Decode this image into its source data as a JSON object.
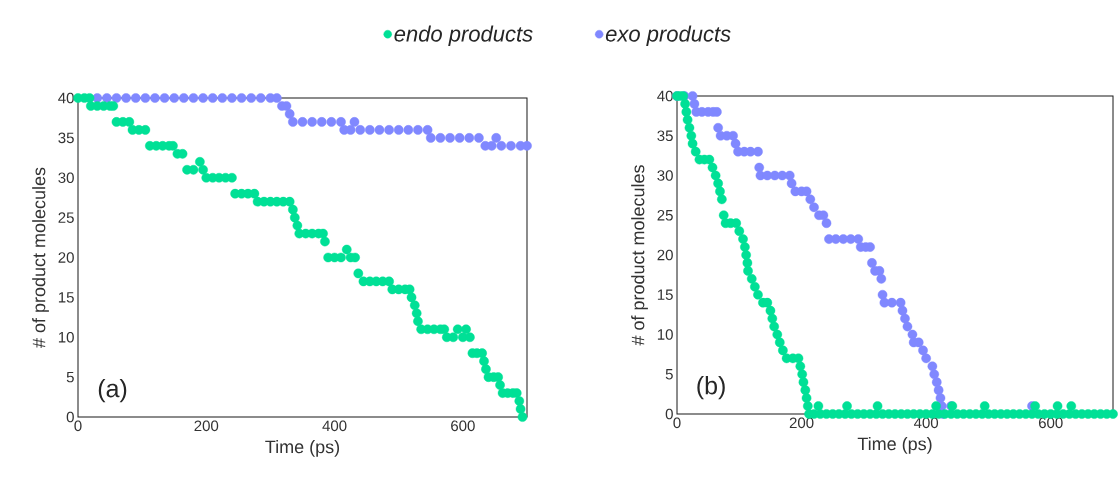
{
  "chart_data": [
    {
      "type": "scatter",
      "xlabel": "Time (ps)",
      "ylabel": "# of product molecules",
      "annotations": [
        "(a)"
      ],
      "xlim": [
        0,
        700
      ],
      "ylim": [
        0,
        40
      ],
      "xticks": [
        0,
        200,
        400,
        600
      ],
      "yticks": [
        0,
        5,
        10,
        15,
        20,
        25,
        30,
        35,
        40
      ],
      "grid": false,
      "legend": "top",
      "marker": "circle",
      "series": [
        {
          "name": "endo products",
          "color": "#00e096",
          "x": [
            0,
            10,
            18,
            20,
            30,
            40,
            50,
            55,
            60,
            70,
            80,
            85,
            95,
            105,
            112,
            122,
            132,
            142,
            148,
            155,
            163,
            170,
            180,
            190,
            195,
            200,
            210,
            220,
            230,
            240,
            245,
            255,
            265,
            275,
            280,
            290,
            300,
            310,
            320,
            330,
            335,
            338,
            342,
            345,
            355,
            365,
            375,
            382,
            385,
            390,
            400,
            410,
            419,
            425,
            432,
            437,
            445,
            455,
            465,
            475,
            485,
            490,
            500,
            510,
            517,
            520,
            525,
            528,
            530,
            535,
            545,
            555,
            565,
            571,
            575,
            585,
            592,
            600,
            605,
            611,
            615,
            622,
            630,
            633,
            636,
            640,
            648,
            655,
            658,
            662,
            670,
            678,
            684,
            688,
            690,
            693
          ],
          "values": [
            40,
            40,
            40,
            39,
            39,
            39,
            39,
            39,
            37,
            37,
            37,
            36,
            36,
            36,
            34,
            34,
            34,
            34,
            34,
            33,
            33,
            31,
            31,
            32,
            31,
            30,
            30,
            30,
            30,
            30,
            28,
            28,
            28,
            28,
            27,
            27,
            27,
            27,
            27,
            27,
            26,
            25,
            24,
            23,
            23,
            23,
            23,
            23,
            22,
            20,
            20,
            20,
            21,
            20,
            20,
            18,
            17,
            17,
            17,
            17,
            17,
            16,
            16,
            16,
            16,
            15,
            14,
            13,
            12,
            11,
            11,
            11,
            11,
            11,
            10,
            10,
            11,
            10,
            11,
            10,
            8,
            8,
            8,
            7,
            6,
            5,
            5,
            5,
            4,
            3,
            3,
            3,
            3,
            2,
            1,
            0
          ]
        },
        {
          "name": "exo products",
          "color": "#8088ff",
          "x": [
            30,
            45,
            60,
            75,
            90,
            105,
            120,
            135,
            150,
            165,
            180,
            195,
            210,
            225,
            240,
            255,
            270,
            285,
            300,
            310,
            318,
            325,
            330,
            335,
            350,
            365,
            380,
            395,
            410,
            431,
            415,
            425,
            440,
            455,
            470,
            485,
            500,
            515,
            530,
            545,
            550,
            565,
            580,
            595,
            610,
            625,
            652,
            635,
            645,
            660,
            675,
            690,
            700
          ],
          "values": [
            40,
            40,
            40,
            40,
            40,
            40,
            40,
            40,
            40,
            40,
            40,
            40,
            40,
            40,
            40,
            40,
            40,
            40,
            40,
            40,
            39,
            39,
            38,
            37,
            37,
            37,
            37,
            37,
            37,
            37,
            36,
            36,
            36,
            36,
            36,
            36,
            36,
            36,
            36,
            36,
            35,
            35,
            35,
            35,
            35,
            35,
            35,
            34,
            34,
            34,
            34,
            34,
            34
          ]
        }
      ]
    },
    {
      "type": "scatter",
      "xlabel": "Time (ps)",
      "ylabel": "# of product molecules",
      "annotations": [
        "(b)"
      ],
      "xlim": [
        0,
        700
      ],
      "ylim": [
        0,
        40
      ],
      "xticks": [
        0,
        200,
        400,
        600
      ],
      "yticks": [
        0,
        5,
        10,
        15,
        20,
        25,
        30,
        35,
        40
      ],
      "grid": false,
      "marker": "circle",
      "series": [
        {
          "color": "#00e096",
          "x": [
            0,
            5,
            10,
            13,
            15,
            17,
            20,
            23,
            25,
            30,
            36,
            44,
            52,
            57,
            62,
            66,
            69,
            72,
            75,
            78,
            86,
            95,
            100,
            106,
            109,
            111,
            113,
            114,
            120,
            125,
            130,
            138,
            145,
            150,
            153,
            156,
            161,
            165,
            170,
            176,
            186,
            195,
            198,
            201,
            203,
            206,
            208,
            210,
            212,
            220,
            227,
            230,
            240,
            250,
            260,
            270,
            273,
            280,
            290,
            300,
            310,
            320,
            322,
            330,
            340,
            350,
            360,
            370,
            380,
            390,
            400,
            410,
            416,
            420,
            430,
            440,
            442,
            450,
            460,
            470,
            480,
            490,
            494,
            500,
            510,
            520,
            530,
            540,
            550,
            560,
            570,
            575,
            580,
            590,
            600,
            610,
            611,
            620,
            630,
            633,
            640,
            650,
            660,
            670,
            680,
            690,
            700
          ],
          "values": [
            40,
            40,
            40,
            39,
            38,
            37,
            36,
            35,
            34,
            33,
            32,
            32,
            32,
            31,
            30,
            29,
            28,
            27,
            25,
            24,
            24,
            24,
            23,
            22,
            21,
            20,
            19,
            18,
            17,
            16,
            15,
            14,
            14,
            13,
            12,
            11,
            10,
            9,
            8,
            7,
            7,
            7,
            6,
            5,
            4,
            3,
            2,
            1,
            0,
            0,
            1,
            0,
            0,
            0,
            0,
            0,
            1,
            0,
            0,
            0,
            0,
            0,
            1,
            0,
            0,
            0,
            0,
            0,
            0,
            0,
            0,
            0,
            1,
            0,
            0,
            0,
            1,
            0,
            0,
            0,
            0,
            0,
            1,
            0,
            0,
            0,
            0,
            0,
            0,
            0,
            0,
            1,
            0,
            0,
            0,
            0,
            1,
            0,
            0,
            1,
            0,
            0,
            0,
            0,
            0,
            0,
            0
          ]
        },
        {
          "color": "#8088ff",
          "x": [
            0,
            12,
            25,
            28,
            31,
            40,
            50,
            58,
            64,
            66,
            70,
            80,
            90,
            94,
            98,
            108,
            118,
            130,
            132,
            134,
            145,
            157,
            169,
            181,
            184,
            190,
            200,
            208,
            214,
            220,
            228,
            235,
            240,
            244,
            255,
            267,
            279,
            291,
            295,
            303,
            310,
            313,
            318,
            325,
            328,
            330,
            333,
            345,
            359,
            362,
            366,
            370,
            378,
            380,
            388,
            395,
            400,
            410,
            413,
            417,
            420,
            423,
            425,
            427,
            440,
            570
          ],
          "values": [
            40,
            40,
            40,
            39,
            38,
            38,
            38,
            38,
            38,
            36,
            35,
            35,
            35,
            34,
            33,
            33,
            33,
            33,
            31,
            30,
            30,
            30,
            30,
            30,
            29,
            28,
            28,
            28,
            27,
            26,
            25,
            25,
            24,
            22,
            22,
            22,
            22,
            22,
            21,
            21,
            21,
            19,
            18,
            18,
            17,
            15,
            14,
            14,
            14,
            13,
            12,
            11,
            10,
            9,
            9,
            8,
            7,
            6,
            5,
            4,
            3,
            2,
            1,
            0,
            1,
            1
          ]
        }
      ]
    }
  ]
}
